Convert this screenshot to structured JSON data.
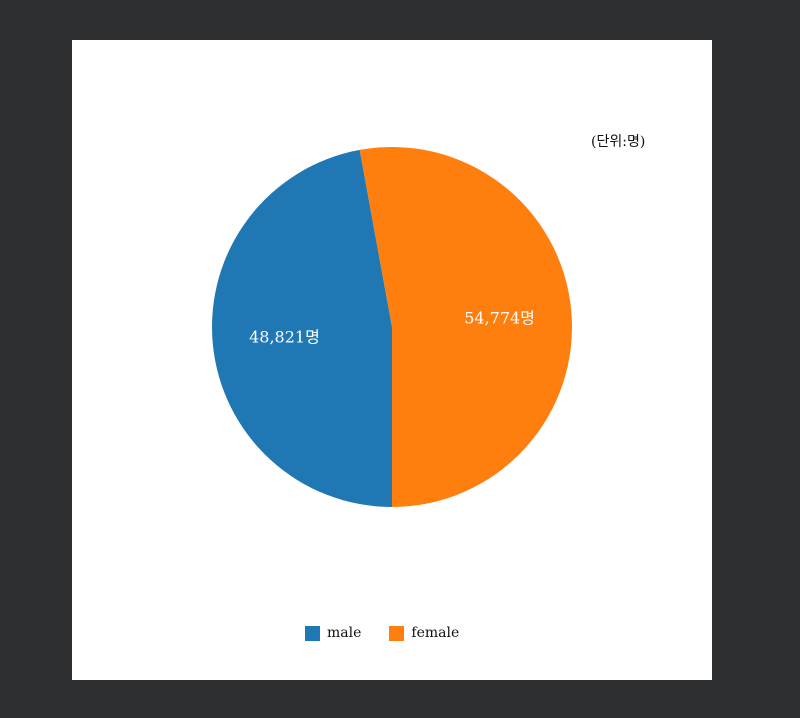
{
  "chart_data": {
    "type": "pie",
    "unit_note": "(단위:명)",
    "categories": [
      "male",
      "female"
    ],
    "values": [
      48821,
      54774
    ],
    "value_labels": [
      "48,821명",
      "54,774명"
    ],
    "colors": [
      "#1f77b4",
      "#ff7f0e"
    ],
    "legend": {
      "position": "bottom-center",
      "entries": [
        "male",
        "female"
      ]
    }
  }
}
